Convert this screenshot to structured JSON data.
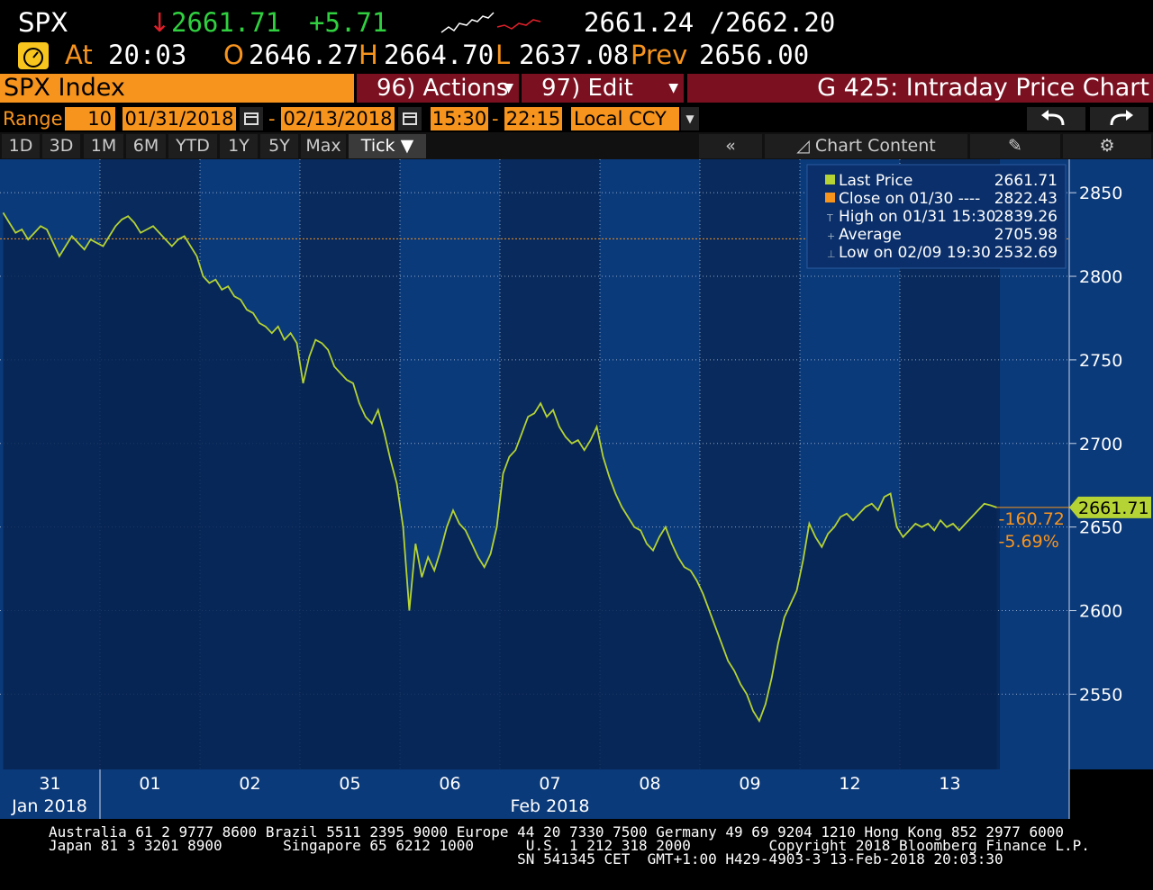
{
  "quote": {
    "ticker": "SPX",
    "arrow": "↓",
    "last": "2661.71",
    "change": "+5.71",
    "bid_ask": "2661.24 /2662.20",
    "at_label": "At",
    "time": "20:03",
    "open_label": "O",
    "open": "2646.27",
    "high_label": "H",
    "high": "2664.70",
    "low_label": "L",
    "low": "2637.08",
    "prev_label": "Prev",
    "prev": "2656.00"
  },
  "toolbar": {
    "security": "SPX Index",
    "actions": "96) Actions",
    "edit": "97) Edit",
    "title": "G 425: Intraday Price Chart"
  },
  "range": {
    "label": "Range",
    "interval": "10",
    "start_date": "01/31/2018",
    "dash1": "-",
    "end_date": "02/13/2018",
    "start_time": "15:30",
    "dash2": "-",
    "end_time": "22:15",
    "currency": "Local CCY"
  },
  "periods": [
    "1D",
    "3D",
    "1M",
    "6M",
    "YTD",
    "1Y",
    "5Y",
    "Max"
  ],
  "selected_period": "Tick ▼",
  "chart_tools": {
    "collapse": "«",
    "chart_content": "Chart Content"
  },
  "colors": {
    "price_line": "#b5d334",
    "close_line": "#f7941e",
    "bg_light": "#0b3a7a",
    "bg_dark": "#082a5c",
    "accent": "#f7941e"
  },
  "chart_data": {
    "type": "line",
    "yticks": [
      2850,
      2800,
      2750,
      2700,
      2650,
      2600,
      2550
    ],
    "ylim": [
      2505,
      2870
    ],
    "day_labels": [
      "31",
      "01",
      "02",
      "05",
      "06",
      "07",
      "08",
      "09",
      "12",
      "13"
    ],
    "month_labels": [
      "Jan 2018",
      "Feb 2018"
    ],
    "legend": [
      {
        "label": "Last Price",
        "value": "2661.71"
      },
      {
        "label": "Close on 01/30 ----",
        "value": "2822.43"
      },
      {
        "label": "High on 01/31 15:30",
        "value": "2839.26"
      },
      {
        "label": "Average",
        "value": "2705.98"
      },
      {
        "label": "Low on 02/09 19:30",
        "value": "2532.69"
      }
    ],
    "last_price_tag": "2661.71",
    "change_abs": "-160.72",
    "change_pct": "-5.69%",
    "close_ref": 2822.43,
    "last_value": 2661.71,
    "series": [
      {
        "name": "Last Price",
        "days": [
          [
            2838,
            2832,
            2826,
            2828,
            2822,
            2826,
            2830,
            2828,
            2820,
            2812,
            2818,
            2824,
            2820,
            2816,
            2822,
            2820
          ],
          [
            2818,
            2824,
            2830,
            2834,
            2836,
            2832,
            2826,
            2828,
            2830,
            2826,
            2822,
            2818,
            2822,
            2824,
            2818,
            2812
          ],
          [
            2800,
            2796,
            2798,
            2792,
            2794,
            2788,
            2786,
            2780,
            2778,
            2772,
            2770,
            2766,
            2770,
            2762,
            2766,
            2760
          ],
          [
            2736,
            2752,
            2762,
            2760,
            2756,
            2746,
            2742,
            2738,
            2736,
            2724,
            2716,
            2712,
            2720,
            2706,
            2690,
            2676
          ],
          [
            2650,
            2600,
            2640,
            2620,
            2632,
            2624,
            2636,
            2650,
            2660,
            2652,
            2648,
            2640,
            2632,
            2626,
            2634,
            2650
          ],
          [
            2682,
            2692,
            2696,
            2706,
            2716,
            2718,
            2724,
            2716,
            2720,
            2710,
            2704,
            2700,
            2702,
            2696,
            2702,
            2710
          ],
          [
            2692,
            2680,
            2670,
            2662,
            2656,
            2650,
            2648,
            2640,
            2636,
            2644,
            2650,
            2640,
            2632,
            2626,
            2624,
            2618
          ],
          [
            2610,
            2600,
            2590,
            2580,
            2570,
            2564,
            2556,
            2550,
            2540,
            2534,
            2544,
            2560,
            2580,
            2596,
            2604,
            2612
          ],
          [
            2630,
            2652,
            2644,
            2638,
            2646,
            2650,
            2656,
            2658,
            2654,
            2658,
            2662,
            2664,
            2660,
            2668,
            2670,
            2650
          ],
          [
            2644,
            2648,
            2652,
            2650,
            2652,
            2648,
            2654,
            2650,
            2652,
            2648,
            2652,
            2656,
            2660,
            2664,
            2663,
            2661.71
          ]
        ]
      }
    ]
  },
  "footer": {
    "line1": "Australia 61 2 9777 8600 Brazil 5511 2395 9000 Europe 44 20 7330 7500 Germany 49 69 9204 1210 Hong Kong 852 2977 6000",
    "line2": "Japan 81 3 3201 8900       Singapore 65 6212 1000      U.S. 1 212 318 2000         Copyright 2018 Bloomberg Finance L.P.",
    "line3": "                                                      SN 541345 CET  GMT+1:00 H429-4903-3 13-Feb-2018 20:03:30"
  }
}
